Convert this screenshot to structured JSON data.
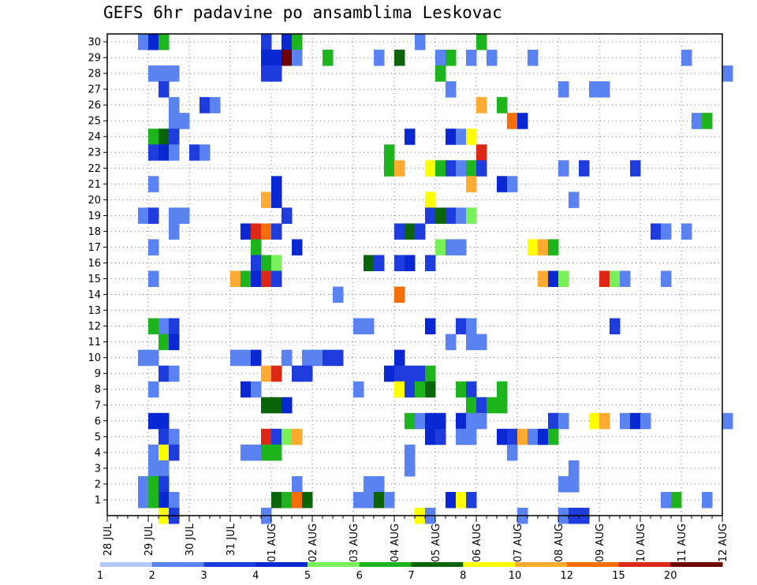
{
  "chart_data": {
    "type": "heatmap",
    "title": "GEFS 6hr padavine po ansamblima Leskovac",
    "y": [
      1,
      2,
      3,
      4,
      5,
      6,
      7,
      8,
      9,
      10,
      11,
      12,
      13,
      14,
      15,
      16,
      17,
      18,
      19,
      20,
      21,
      22,
      23,
      24,
      25,
      26,
      27,
      28,
      29,
      30
    ],
    "ylim": [
      0,
      30
    ],
    "x_tick_labels": [
      "28 JUL",
      "29 JUL",
      "30 JUL",
      "31 JUL",
      "01 AUG",
      "02 AUG",
      "03 AUG",
      "04 AUG",
      "05 AUG",
      "06 AUG",
      "07 AUG",
      "08 AUG",
      "09 AUG",
      "10 AUG",
      "11 AUG",
      "12 AUG"
    ],
    "time_step_hours": 6,
    "grid": true,
    "colorbar": {
      "position": "bottom",
      "labels": [
        "1",
        "2",
        "3",
        "4",
        "5",
        "6",
        "7",
        "8",
        "10",
        "12",
        "15",
        "20"
      ],
      "colors": [
        "#b4c8ff",
        "#5a82f0",
        "#1e3cdc",
        "#0a28d2",
        "#78f05a",
        "#1eb41e",
        "#0a640a",
        "#ffff00",
        "#ffaa32",
        "#f56e0a",
        "#dc2814",
        "#6e0000"
      ]
    },
    "cells": [
      [
        3,
        30,
        1
      ],
      [
        4,
        30,
        3
      ],
      [
        5,
        30,
        5
      ],
      [
        15,
        30,
        2
      ],
      [
        17,
        30,
        3
      ],
      [
        18,
        30,
        5
      ],
      [
        30,
        30,
        1
      ],
      [
        36,
        30,
        5
      ],
      [
        15,
        29,
        3
      ],
      [
        16,
        29,
        3
      ],
      [
        17,
        29,
        11
      ],
      [
        18,
        29,
        1
      ],
      [
        21,
        29,
        5
      ],
      [
        26,
        29,
        1
      ],
      [
        28,
        29,
        6
      ],
      [
        32,
        29,
        1
      ],
      [
        33,
        29,
        5
      ],
      [
        35,
        29,
        1
      ],
      [
        37,
        29,
        1
      ],
      [
        41,
        29,
        1
      ],
      [
        56,
        29,
        1
      ],
      [
        4,
        28,
        1
      ],
      [
        5,
        28,
        1
      ],
      [
        6,
        28,
        1
      ],
      [
        15,
        28,
        2
      ],
      [
        16,
        28,
        2
      ],
      [
        32,
        28,
        5
      ],
      [
        60,
        28,
        1
      ],
      [
        5,
        27,
        2
      ],
      [
        33,
        27,
        1
      ],
      [
        44,
        27,
        1
      ],
      [
        47,
        27,
        1
      ],
      [
        48,
        27,
        1
      ],
      [
        6,
        26,
        1
      ],
      [
        9,
        26,
        2
      ],
      [
        10,
        26,
        1
      ],
      [
        36,
        26,
        8
      ],
      [
        38,
        26,
        5
      ],
      [
        6,
        25,
        1
      ],
      [
        7,
        25,
        1
      ],
      [
        39,
        25,
        9
      ],
      [
        40,
        25,
        3
      ],
      [
        57,
        25,
        1
      ],
      [
        58,
        25,
        5
      ],
      [
        4,
        24,
        5
      ],
      [
        5,
        24,
        6
      ],
      [
        6,
        24,
        2
      ],
      [
        29,
        24,
        3
      ],
      [
        33,
        24,
        3
      ],
      [
        34,
        24,
        1
      ],
      [
        35,
        24,
        7
      ],
      [
        4,
        23,
        2
      ],
      [
        5,
        23,
        3
      ],
      [
        6,
        23,
        1
      ],
      [
        8,
        23,
        2
      ],
      [
        9,
        23,
        1
      ],
      [
        27,
        23,
        5
      ],
      [
        36,
        23,
        10
      ],
      [
        27,
        22,
        5
      ],
      [
        28,
        22,
        8
      ],
      [
        31,
        22,
        7
      ],
      [
        32,
        22,
        5
      ],
      [
        33,
        22,
        2
      ],
      [
        34,
        22,
        1
      ],
      [
        35,
        22,
        5
      ],
      [
        36,
        22,
        2
      ],
      [
        44,
        22,
        1
      ],
      [
        46,
        22,
        2
      ],
      [
        51,
        22,
        2
      ],
      [
        4,
        21,
        1
      ],
      [
        16,
        21,
        3
      ],
      [
        35,
        21,
        8
      ],
      [
        38,
        21,
        3
      ],
      [
        39,
        21,
        1
      ],
      [
        15,
        20,
        8
      ],
      [
        16,
        20,
        3
      ],
      [
        31,
        20,
        7
      ],
      [
        45,
        20,
        1
      ],
      [
        3,
        19,
        1
      ],
      [
        4,
        19,
        2
      ],
      [
        6,
        19,
        1
      ],
      [
        7,
        19,
        1
      ],
      [
        17,
        19,
        2
      ],
      [
        31,
        19,
        2
      ],
      [
        32,
        19,
        6
      ],
      [
        33,
        19,
        2
      ],
      [
        34,
        19,
        1
      ],
      [
        35,
        19,
        4
      ],
      [
        6,
        18,
        1
      ],
      [
        13,
        18,
        3
      ],
      [
        14,
        18,
        10
      ],
      [
        15,
        18,
        9
      ],
      [
        16,
        18,
        2
      ],
      [
        28,
        18,
        2
      ],
      [
        29,
        18,
        6
      ],
      [
        30,
        18,
        2
      ],
      [
        53,
        18,
        2
      ],
      [
        54,
        18,
        1
      ],
      [
        56,
        18,
        1
      ],
      [
        4,
        17,
        1
      ],
      [
        14,
        17,
        5
      ],
      [
        18,
        17,
        3
      ],
      [
        32,
        17,
        4
      ],
      [
        33,
        17,
        1
      ],
      [
        34,
        17,
        1
      ],
      [
        41,
        17,
        7
      ],
      [
        42,
        17,
        8
      ],
      [
        43,
        17,
        5
      ],
      [
        14,
        16,
        2
      ],
      [
        15,
        16,
        5
      ],
      [
        16,
        16,
        4
      ],
      [
        25,
        16,
        6
      ],
      [
        26,
        16,
        2
      ],
      [
        28,
        16,
        2
      ],
      [
        29,
        16,
        3
      ],
      [
        31,
        16,
        2
      ],
      [
        4,
        15,
        1
      ],
      [
        12,
        15,
        8
      ],
      [
        13,
        15,
        5
      ],
      [
        14,
        15,
        3
      ],
      [
        15,
        15,
        10
      ],
      [
        16,
        15,
        2
      ],
      [
        42,
        15,
        8
      ],
      [
        43,
        15,
        3
      ],
      [
        44,
        15,
        4
      ],
      [
        48,
        15,
        10
      ],
      [
        49,
        15,
        4
      ],
      [
        50,
        15,
        1
      ],
      [
        54,
        15,
        1
      ],
      [
        22,
        14,
        1
      ],
      [
        28,
        14,
        9
      ],
      [
        4,
        12,
        5
      ],
      [
        5,
        12,
        1
      ],
      [
        6,
        12,
        2
      ],
      [
        24,
        12,
        1
      ],
      [
        25,
        12,
        1
      ],
      [
        31,
        12,
        3
      ],
      [
        34,
        12,
        2
      ],
      [
        35,
        12,
        1
      ],
      [
        49,
        12,
        2
      ],
      [
        5,
        11,
        5
      ],
      [
        6,
        11,
        3
      ],
      [
        33,
        11,
        1
      ],
      [
        35,
        11,
        1
      ],
      [
        36,
        11,
        1
      ],
      [
        3,
        10,
        1
      ],
      [
        4,
        10,
        1
      ],
      [
        12,
        10,
        1
      ],
      [
        13,
        10,
        1
      ],
      [
        14,
        10,
        3
      ],
      [
        17,
        10,
        1
      ],
      [
        19,
        10,
        1
      ],
      [
        20,
        10,
        1
      ],
      [
        21,
        10,
        2
      ],
      [
        22,
        10,
        2
      ],
      [
        28,
        10,
        3
      ],
      [
        5,
        9,
        2
      ],
      [
        6,
        9,
        1
      ],
      [
        15,
        9,
        8
      ],
      [
        16,
        9,
        10
      ],
      [
        18,
        9,
        2
      ],
      [
        19,
        9,
        2
      ],
      [
        27,
        9,
        3
      ],
      [
        28,
        9,
        2
      ],
      [
        29,
        9,
        2
      ],
      [
        30,
        9,
        2
      ],
      [
        31,
        9,
        5
      ],
      [
        4,
        8,
        1
      ],
      [
        13,
        8,
        3
      ],
      [
        14,
        8,
        1
      ],
      [
        24,
        8,
        1
      ],
      [
        28,
        8,
        7
      ],
      [
        29,
        8,
        2
      ],
      [
        30,
        8,
        5
      ],
      [
        31,
        8,
        6
      ],
      [
        34,
        8,
        5
      ],
      [
        35,
        8,
        2
      ],
      [
        38,
        8,
        5
      ],
      [
        15,
        7,
        6
      ],
      [
        16,
        7,
        6
      ],
      [
        17,
        7,
        3
      ],
      [
        35,
        7,
        5
      ],
      [
        36,
        7,
        2
      ],
      [
        37,
        7,
        5
      ],
      [
        38,
        7,
        5
      ],
      [
        4,
        6,
        3
      ],
      [
        5,
        6,
        3
      ],
      [
        29,
        6,
        5
      ],
      [
        30,
        6,
        1
      ],
      [
        31,
        6,
        3
      ],
      [
        32,
        6,
        3
      ],
      [
        34,
        6,
        3
      ],
      [
        35,
        6,
        1
      ],
      [
        36,
        6,
        1
      ],
      [
        43,
        6,
        2
      ],
      [
        44,
        6,
        1
      ],
      [
        47,
        6,
        7
      ],
      [
        48,
        6,
        8
      ],
      [
        50,
        6,
        1
      ],
      [
        51,
        6,
        3
      ],
      [
        52,
        6,
        1
      ],
      [
        60,
        6,
        1
      ],
      [
        5,
        5,
        2
      ],
      [
        6,
        5,
        1
      ],
      [
        15,
        5,
        10
      ],
      [
        16,
        5,
        2
      ],
      [
        17,
        5,
        4
      ],
      [
        18,
        5,
        8
      ],
      [
        31,
        5,
        3
      ],
      [
        32,
        5,
        2
      ],
      [
        34,
        5,
        1
      ],
      [
        35,
        5,
        1
      ],
      [
        38,
        5,
        3
      ],
      [
        39,
        5,
        2
      ],
      [
        40,
        5,
        8
      ],
      [
        41,
        5,
        1
      ],
      [
        42,
        5,
        3
      ],
      [
        43,
        5,
        5
      ],
      [
        4,
        4,
        1
      ],
      [
        5,
        4,
        7
      ],
      [
        6,
        4,
        2
      ],
      [
        13,
        4,
        1
      ],
      [
        14,
        4,
        1
      ],
      [
        15,
        4,
        5
      ],
      [
        16,
        4,
        5
      ],
      [
        29,
        4,
        1
      ],
      [
        39,
        4,
        1
      ],
      [
        4,
        3,
        1
      ],
      [
        5,
        3,
        1
      ],
      [
        29,
        3,
        1
      ],
      [
        45,
        3,
        1
      ],
      [
        3,
        2,
        1
      ],
      [
        4,
        2,
        5
      ],
      [
        5,
        2,
        2
      ],
      [
        18,
        2,
        1
      ],
      [
        25,
        2,
        1
      ],
      [
        26,
        2,
        1
      ],
      [
        44,
        2,
        1
      ],
      [
        45,
        2,
        1
      ],
      [
        3,
        1,
        1
      ],
      [
        4,
        1,
        5
      ],
      [
        5,
        1,
        3
      ],
      [
        6,
        1,
        1
      ],
      [
        16,
        1,
        6
      ],
      [
        17,
        1,
        5
      ],
      [
        18,
        1,
        9
      ],
      [
        19,
        1,
        6
      ],
      [
        24,
        1,
        1
      ],
      [
        25,
        1,
        1
      ],
      [
        26,
        1,
        6
      ],
      [
        27,
        1,
        1
      ],
      [
        33,
        1,
        3
      ],
      [
        34,
        1,
        7
      ],
      [
        35,
        1,
        2
      ],
      [
        54,
        1,
        1
      ],
      [
        55,
        1,
        5
      ],
      [
        58,
        1,
        1
      ],
      [
        5,
        0,
        7
      ],
      [
        6,
        0,
        2
      ],
      [
        15,
        0,
        1
      ],
      [
        30,
        0,
        7
      ],
      [
        31,
        0,
        1
      ],
      [
        40,
        0,
        1
      ],
      [
        44,
        0,
        1
      ],
      [
        45,
        0,
        2
      ],
      [
        46,
        0,
        2
      ]
    ]
  }
}
